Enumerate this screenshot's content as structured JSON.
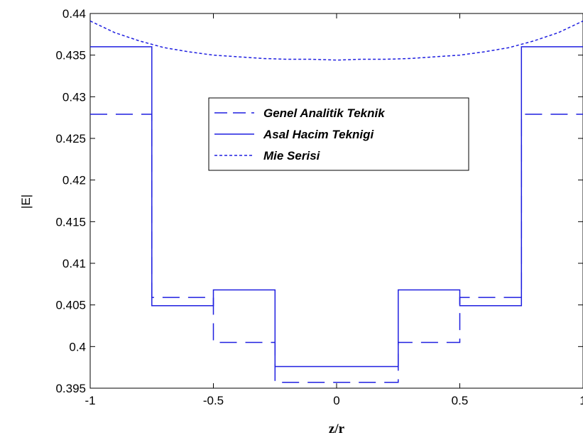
{
  "chart_data": {
    "type": "line",
    "xlabel": "z/r",
    "ylabel": "|E|",
    "xlim": [
      -1,
      1
    ],
    "ylim": [
      0.395,
      0.44
    ],
    "x_ticks": [
      -1,
      -0.5,
      0,
      0.5,
      1
    ],
    "x_tick_labels": [
      "-1",
      "-0.5",
      "0",
      "0.5",
      "1"
    ],
    "y_ticks": [
      0.395,
      0.4,
      0.405,
      0.41,
      0.415,
      0.42,
      0.425,
      0.43,
      0.435,
      0.44
    ],
    "y_tick_labels": [
      "0.395",
      "0.4",
      "0.405",
      "0.41",
      "0.415",
      "0.42",
      "0.425",
      "0.43",
      "0.435",
      "0.44"
    ],
    "grid": false,
    "legend_position": "upper-center",
    "color": "#1f1fe0",
    "series": [
      {
        "name": "Genel Analitik Teknik",
        "style": "dashed",
        "x": [
          -1,
          -0.75,
          -0.75,
          -0.5,
          -0.5,
          -0.25,
          -0.25,
          0.25,
          0.25,
          0.5,
          0.5,
          0.75,
          0.75,
          1
        ],
        "y": [
          0.4279,
          0.4279,
          0.4059,
          0.4059,
          0.4005,
          0.4005,
          0.3957,
          0.3957,
          0.4005,
          0.4005,
          0.4059,
          0.4059,
          0.4279,
          0.4279
        ]
      },
      {
        "name": "Asal Hacim Teknigi",
        "style": "solid",
        "x": [
          -1,
          -0.75,
          -0.75,
          -0.5,
          -0.5,
          -0.25,
          -0.25,
          0.25,
          0.25,
          0.5,
          0.5,
          0.75,
          0.75,
          1
        ],
        "y": [
          0.436,
          0.436,
          0.4049,
          0.4049,
          0.4068,
          0.4068,
          0.3976,
          0.3976,
          0.4068,
          0.4068,
          0.4049,
          0.4049,
          0.436,
          0.436
        ]
      },
      {
        "name": "Mie Serisi",
        "style": "dotted",
        "x": [
          -1,
          -0.9,
          -0.8,
          -0.7,
          -0.6,
          -0.5,
          -0.4,
          -0.3,
          -0.2,
          -0.1,
          0,
          0.1,
          0.2,
          0.3,
          0.4,
          0.5,
          0.6,
          0.7,
          0.8,
          0.9,
          1
        ],
        "y": [
          0.4391,
          0.4377,
          0.4367,
          0.4359,
          0.4354,
          0.435,
          0.4348,
          0.4346,
          0.4345,
          0.4345,
          0.4344,
          0.4345,
          0.4345,
          0.4346,
          0.4348,
          0.435,
          0.4354,
          0.4359,
          0.4367,
          0.4377,
          0.4391
        ]
      }
    ]
  }
}
